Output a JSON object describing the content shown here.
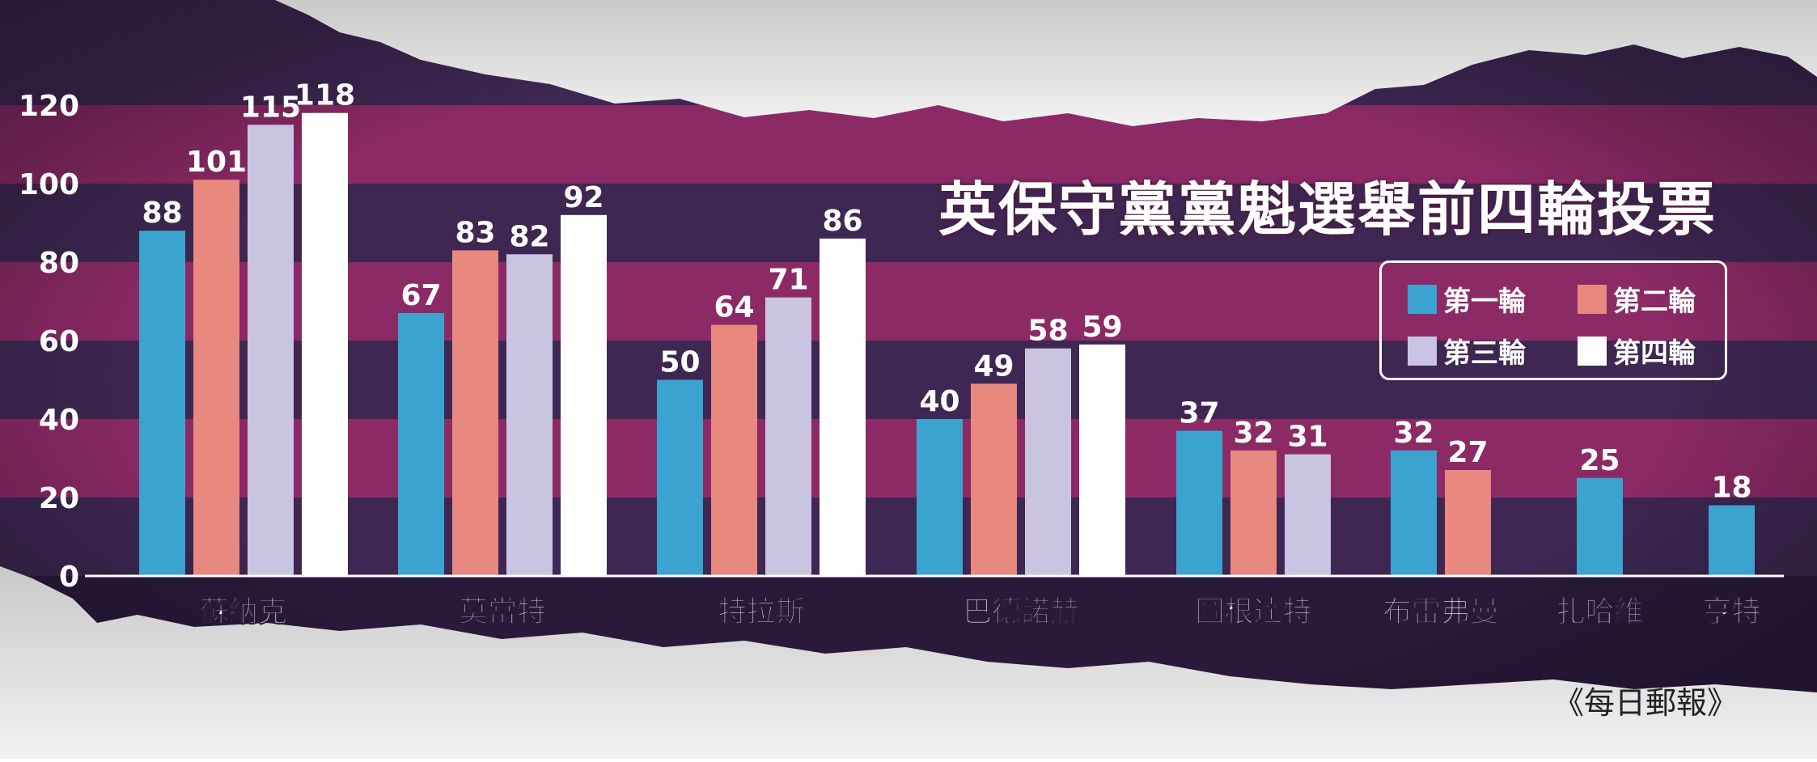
{
  "chart_data": {
    "type": "bar",
    "title": "英保守黨黨魁選舉前四輪投票",
    "categories": [
      "蘇納克",
      "莫當特",
      "特拉斯",
      "巴德諾赫",
      "圖根達特",
      "布雷弗曼",
      "扎哈維",
      "亨特"
    ],
    "series": [
      {
        "name": "第一輪",
        "color": "#3ba3cf",
        "values": [
          88,
          67,
          50,
          40,
          37,
          32,
          25,
          18
        ]
      },
      {
        "name": "第二輪",
        "color": "#e8887f",
        "values": [
          101,
          83,
          64,
          49,
          32,
          27,
          null,
          null
        ]
      },
      {
        "name": "第三輪",
        "color": "#c9c4e2",
        "values": [
          115,
          82,
          71,
          58,
          31,
          null,
          null,
          null
        ]
      },
      {
        "name": "第四輪",
        "color": "#ffffff",
        "values": [
          118,
          92,
          86,
          59,
          null,
          null,
          null,
          null
        ]
      }
    ],
    "ylim": [
      0,
      120
    ],
    "yticks": [
      0,
      20,
      40,
      60,
      80,
      100,
      120
    ],
    "xlabel": "",
    "ylabel": "",
    "legend_position": "right",
    "grid": "horizontal-bands"
  },
  "source": "《每日郵報》",
  "colors": {
    "band_dark": "#3e2752",
    "band_magenta": "#8c2a66",
    "background_edge": "#2a1a3a",
    "torn_paper": "#e6e6e6"
  }
}
